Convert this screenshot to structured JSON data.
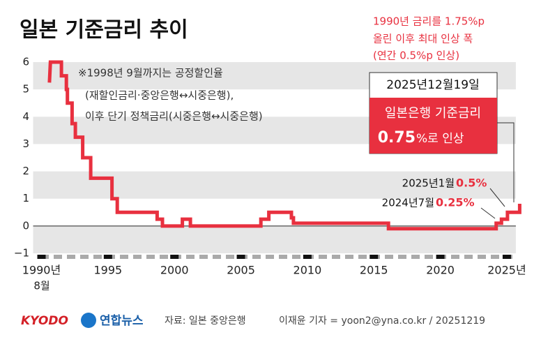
{
  "chart_data": {
    "type": "line",
    "title": "일본 기준금리 추이",
    "x": [
      1990.6,
      1990.67,
      1991.5,
      1991.5,
      1991.87,
      1991.87,
      1991.95,
      1991.95,
      1992.3,
      1992.3,
      1992.55,
      1992.55,
      1993.1,
      1993.1,
      1993.7,
      1993.7,
      1995.3,
      1995.3,
      1995.7,
      1995.7,
      1998.7,
      1998.7,
      1999.1,
      1999.1,
      2000.6,
      2000.6,
      2001.2,
      2001.2,
      2006.5,
      2006.5,
      2007.1,
      2007.1,
      2008.8,
      2008.8,
      2008.95,
      2008.95,
      2016.1,
      2016.1,
      2024.2,
      2024.2,
      2024.6,
      2024.6,
      2025.05,
      2025.05,
      2025.97,
      2025.97,
      2026.1
    ],
    "series": [
      {
        "name": "기준금리",
        "color": "#e8303f",
        "values": [
          5.25,
          6,
          6,
          5.5,
          5.5,
          5,
          5,
          4.5,
          4.5,
          3.75,
          3.75,
          3.25,
          3.25,
          2.5,
          2.5,
          1.75,
          1.75,
          1,
          1,
          0.5,
          0.5,
          0.25,
          0.25,
          0,
          0,
          0.25,
          0.25,
          0,
          0,
          0.25,
          0.25,
          0.5,
          0.5,
          0.3,
          0.3,
          0.1,
          0.1,
          -0.1,
          -0.1,
          0.1,
          0.1,
          0.25,
          0.25,
          0.5,
          0.5,
          0.75,
          0.75
        ]
      }
    ],
    "xlim": [
      1990,
      2026.1
    ],
    "xticks": [
      {
        "value": 1990,
        "label": "1990년"
      },
      1995,
      2000,
      2005,
      2010,
      2015,
      2020,
      {
        "value": 2025,
        "label": "2025년"
      }
    ],
    "x_start_note": "8월",
    "ylim": [
      -1,
      6
    ],
    "yticks": [
      {
        "value": -1,
        "label": "−1"
      },
      0,
      1,
      2,
      3,
      4,
      5,
      6
    ],
    "grid_bands": true,
    "footnote": [
      "※1998년 9월까지는 공정할인율",
      "(재할인금리·중앙은행↔시중은행),",
      "이후 단기 정책금리(시중은행↔시중은행)"
    ],
    "top_note": [
      "1990년 금리를 1.75%p",
      "올린 이후 최대 인상 폭",
      "(연간 0.5%p 인상)"
    ],
    "box_date": "2025년12월19일",
    "box_title": "일본은행 기준금리",
    "box_value": "0.75",
    "box_suffix": "%로 인상",
    "callouts": [
      {
        "date": "2025년1월",
        "value": "0.5%"
      },
      {
        "date": "2024년7월",
        "value": "0.25%"
      }
    ]
  },
  "footer": {
    "brand1": "KYODO",
    "brand2": "연합뉴스",
    "source": "자료: 일본 중앙은행",
    "credit": "이재윤 기자 = yoon2@yna.co.kr / 20251219"
  }
}
